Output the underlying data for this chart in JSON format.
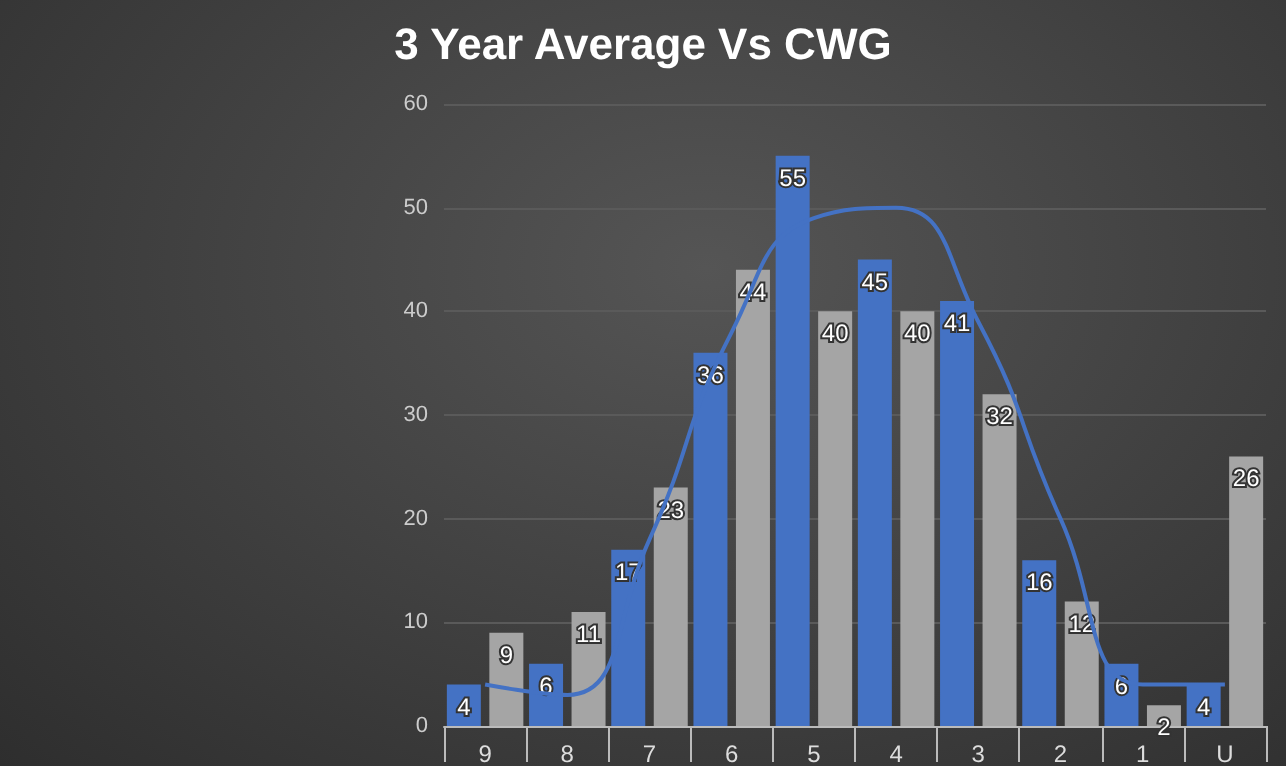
{
  "chart_data": {
    "type": "bar",
    "title": "3 Year Average Vs CWG",
    "categories": [
      "9",
      "8",
      "7",
      "6",
      "5",
      "4",
      "3",
      "2",
      "1",
      "U"
    ],
    "series": [
      {
        "color": "#4472c4",
        "values": [
          4,
          6,
          17,
          36,
          55,
          45,
          41,
          16,
          6,
          4
        ],
        "value_labels": [
          "4",
          "6",
          "17",
          "36",
          "55",
          "45",
          "41",
          "16",
          "6",
          "4"
        ]
      },
      {
        "color": "#a5a5a5",
        "values": [
          9,
          11,
          23,
          44,
          40,
          40,
          32,
          12,
          2,
          26
        ],
        "value_labels": [
          "9",
          "11",
          "23",
          "44",
          "40",
          "40",
          "32",
          "12",
          "2",
          "26"
        ]
      },
      {
        "type": "line",
        "color": "#4472c4",
        "marker": "none",
        "values": [
          4,
          3,
          18,
          38,
          49,
          50,
          39,
          20,
          4,
          4
        ]
      }
    ],
    "ylim": [
      0,
      60
    ],
    "yticks": [
      0,
      10,
      20,
      30,
      40,
      50,
      60
    ],
    "grid": "y"
  }
}
